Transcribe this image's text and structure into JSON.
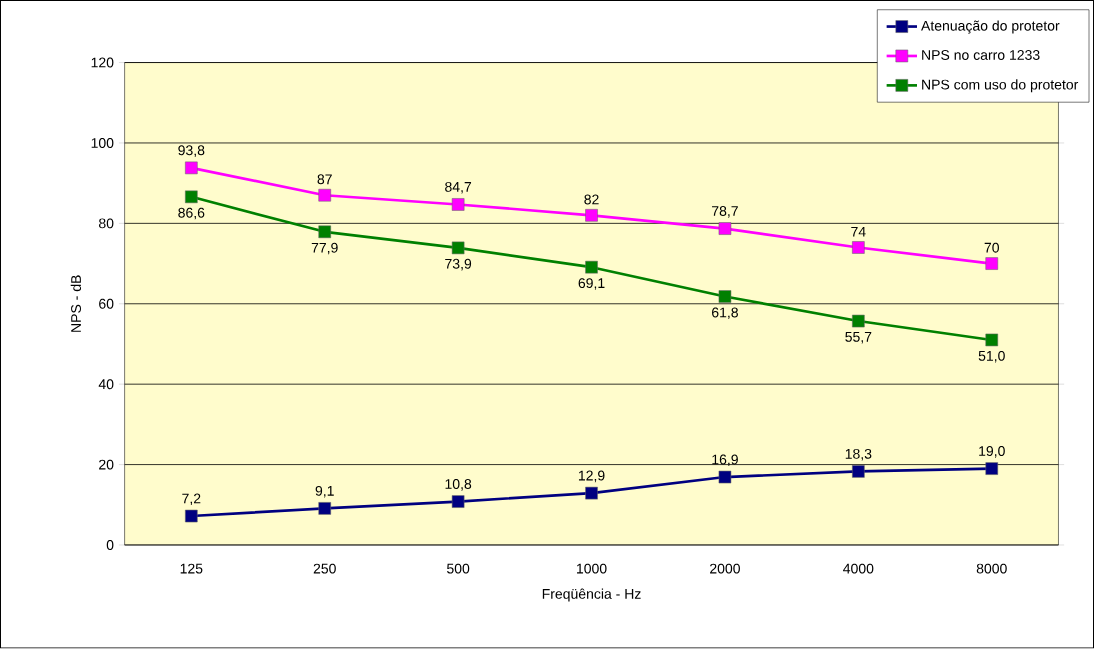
{
  "chart_data": {
    "type": "line",
    "xlabel": "Freqüência - Hz",
    "ylabel": "NPS - dB",
    "categories": [
      "125",
      "250",
      "500",
      "1000",
      "2000",
      "4000",
      "8000"
    ],
    "series": [
      {
        "name": "Atenuação do protetor",
        "color": "#000080",
        "values": [
          7.2,
          9.1,
          10.8,
          12.9,
          16.9,
          18.3,
          19.0
        ],
        "value_labels": [
          "7,2",
          "9,1",
          "10,8",
          "12,9",
          "16,9",
          "18,3",
          "19,0"
        ]
      },
      {
        "name": "NPS no carro 1233",
        "color": "#ff00ff",
        "values": [
          93.8,
          87,
          84.7,
          82,
          78.7,
          74,
          70
        ],
        "value_labels": [
          "93,8",
          "87",
          "84,7",
          "82",
          "78,7",
          "74",
          "70"
        ]
      },
      {
        "name": "NPS com uso do protetor",
        "color": "#008000",
        "values": [
          86.6,
          77.9,
          73.9,
          69.1,
          61.8,
          55.7,
          51.0
        ],
        "value_labels": [
          "86,6",
          "77,9",
          "73,9",
          "69,1",
          "61,8",
          "55,7",
          "51,0"
        ]
      }
    ],
    "ylim": [
      0,
      120
    ],
    "yticks": [
      0,
      20,
      40,
      60,
      80,
      100,
      120
    ],
    "grid": "y",
    "legend": "top right",
    "marker": "square",
    "line_style": "solid"
  }
}
